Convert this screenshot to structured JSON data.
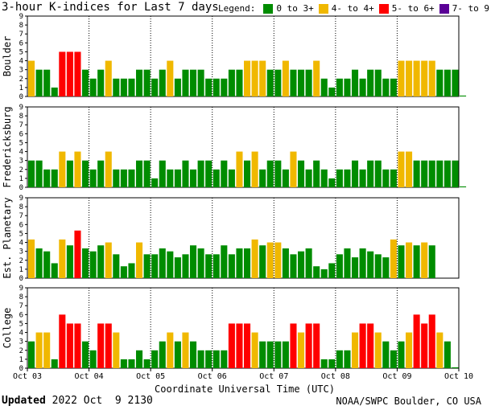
{
  "header": {
    "title": "3-hour K-indices for Last 7 days",
    "legend_label": "Legend:",
    "legend": [
      {
        "label": "0 to 3+",
        "color": "#008c00"
      },
      {
        "label": "4- to 4+",
        "color": "#f0b800"
      },
      {
        "label": "5- to 6+",
        "color": "#ff0000"
      },
      {
        "label": "7- to 9",
        "color": "#5a0096"
      }
    ]
  },
  "footer": {
    "updated_label": "Updated",
    "updated_value": "2022 Oct  9 2130",
    "credit": "NOAA/SWPC Boulder, CO USA"
  },
  "chart_data": [
    {
      "type": "bar",
      "ylabel": "Boulder",
      "ylim": [
        0,
        9
      ],
      "yticks": [
        "0",
        "1",
        "2",
        "3",
        "4",
        "5",
        "6",
        "7",
        "8",
        "9"
      ],
      "x_tick_labels": [
        "Oct 03",
        "Oct 04",
        "Oct 05",
        "Oct 06",
        "Oct 07",
        "Oct 08",
        "Oct 09",
        "Oct 10"
      ],
      "values": [
        4,
        3,
        3,
        1,
        5,
        5,
        5,
        3,
        2,
        3,
        4,
        2,
        2,
        2,
        3,
        3,
        2,
        3,
        4,
        2,
        3,
        3,
        3,
        2,
        2,
        2,
        3,
        3,
        4,
        4,
        4,
        3,
        3,
        4,
        3,
        3,
        3,
        4,
        2,
        1,
        2,
        2,
        3,
        2,
        3,
        3,
        2,
        2,
        4,
        4,
        4,
        4,
        4,
        3,
        3,
        3,
        0.1
      ]
    },
    {
      "type": "bar",
      "ylabel": "Fredericksburg",
      "ylim": [
        0,
        9
      ],
      "yticks": [
        "0",
        "1",
        "2",
        "3",
        "4",
        "5",
        "6",
        "7",
        "8",
        "9"
      ],
      "x_tick_labels": [
        "Oct 03",
        "Oct 04",
        "Oct 05",
        "Oct 06",
        "Oct 07",
        "Oct 08",
        "Oct 09",
        "Oct 10"
      ],
      "values": [
        3,
        3,
        2,
        2,
        4,
        3,
        4,
        3,
        2,
        3,
        4,
        2,
        2,
        2,
        3,
        3,
        1,
        3,
        2,
        2,
        3,
        2,
        3,
        3,
        2,
        3,
        2,
        4,
        3,
        4,
        2,
        3,
        3,
        2,
        4,
        3,
        2,
        3,
        2,
        1,
        2,
        2,
        3,
        2,
        3,
        3,
        2,
        2,
        4,
        4,
        3,
        3,
        3,
        3,
        3,
        3,
        0.1
      ]
    },
    {
      "type": "bar",
      "ylabel": "Est. Planetary",
      "ylim": [
        0,
        9
      ],
      "yticks": [
        "0",
        "1",
        "2",
        "3",
        "4",
        "5",
        "6",
        "7",
        "8",
        "9"
      ],
      "x_tick_labels": [
        "Oct 03",
        "Oct 04",
        "Oct 05",
        "Oct 06",
        "Oct 07",
        "Oct 08",
        "Oct 09",
        "Oct 10"
      ],
      "values": [
        4.33,
        3.33,
        3,
        1.67,
        4.33,
        3.67,
        5.33,
        3.33,
        3,
        3.67,
        4,
        2.67,
        1.33,
        1.67,
        4,
        2.67,
        2.67,
        3.33,
        3,
        2.33,
        2.67,
        3.67,
        3.33,
        2.67,
        2.67,
        3.67,
        2.67,
        3.33,
        3.33,
        4.33,
        3.67,
        4,
        4,
        3.33,
        2.67,
        3,
        3.33,
        1.33,
        1,
        1.67,
        2.67,
        3.33,
        2.33,
        3.33,
        3,
        2.67,
        2.33,
        4.33,
        3.67,
        4,
        3.67,
        4,
        3.67
      ]
    },
    {
      "type": "bar",
      "ylabel": "College",
      "ylim": [
        0,
        9
      ],
      "yticks": [
        "0",
        "1",
        "2",
        "3",
        "4",
        "5",
        "6",
        "7",
        "8",
        "9"
      ],
      "x_tick_labels": [
        "Oct 03",
        "Oct 04",
        "Oct 05",
        "Oct 06",
        "Oct 07",
        "Oct 08",
        "Oct 09",
        "Oct 10"
      ],
      "values": [
        3,
        4,
        4,
        1,
        6,
        5,
        5,
        3,
        2,
        5,
        5,
        4,
        1,
        1,
        2,
        1,
        2,
        3,
        4,
        3,
        4,
        3,
        2,
        2,
        2,
        2,
        5,
        5,
        5,
        4,
        3,
        3,
        3,
        3,
        5,
        4,
        5,
        5,
        1,
        1,
        2,
        2,
        4,
        5,
        5,
        4,
        3,
        2,
        3,
        4,
        6,
        5,
        6,
        4,
        3,
        0.1
      ]
    }
  ],
  "x_axis_title": "Coordinate Universal Time (UTC)"
}
